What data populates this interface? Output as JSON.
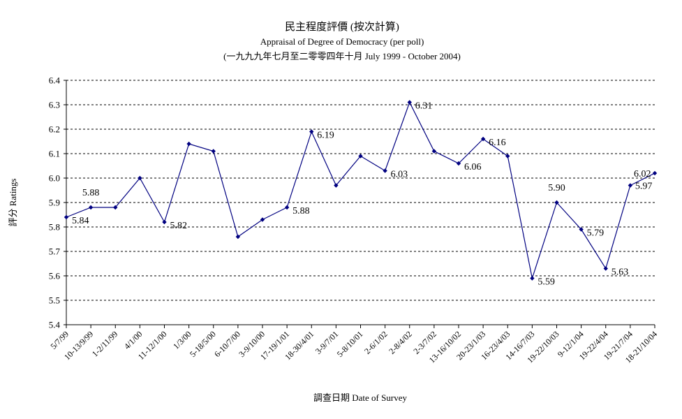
{
  "chart_data": {
    "type": "line",
    "title": "民主程度評價 (按次計算)",
    "subtitle_1": "Appraisal of Degree of Democracy (per poll)",
    "subtitle_2": "(一九九九年七月至二零零四年十月 July 1999 - October 2004)",
    "xlabel": "調查日期 Date of Survey",
    "ylabel": "評分 Ratings",
    "ylim": [
      5.4,
      6.4
    ],
    "yticks": [
      "5.4",
      "5.5",
      "5.6",
      "5.7",
      "5.8",
      "5.9",
      "6.0",
      "6.1",
      "6.2",
      "6.3",
      "6.4"
    ],
    "grid": true,
    "grid_style": "dashed",
    "line_color": "#000080",
    "categories": [
      "5/7/99",
      "10-13/9/99",
      "1-2/11/99",
      "4/1/00",
      "11-12/1/00",
      "1/3/00",
      "5-18/5/00",
      "6-10/7/00",
      "3-9/10/00",
      "17-19/1/01",
      "18-30/4/01",
      "3-9/7/01",
      "5-8/10/01",
      "2-6/1/02",
      "2-8/4/02",
      "2-3/7/02",
      "13-16/10/02",
      "20-23/1/03",
      "16-23/4/03",
      "14-16/7/03",
      "19-22/10/03",
      "9-12/1/04",
      "19-22/4/04",
      "19-21/7/04",
      "18-21/10/04"
    ],
    "values": [
      5.84,
      5.88,
      5.88,
      6.0,
      5.82,
      6.14,
      6.11,
      5.76,
      5.83,
      5.88,
      6.19,
      5.97,
      6.09,
      6.03,
      6.31,
      6.11,
      6.06,
      6.16,
      6.09,
      5.59,
      5.9,
      5.79,
      5.63,
      5.97,
      6.02
    ],
    "data_labels": [
      {
        "index": 0,
        "text": "5.84"
      },
      {
        "index": 1,
        "text": "5.88"
      },
      {
        "index": 4,
        "text": "5.82"
      },
      {
        "index": 9,
        "text": "5.88"
      },
      {
        "index": 10,
        "text": "6.19"
      },
      {
        "index": 13,
        "text": "6.03"
      },
      {
        "index": 14,
        "text": "6.31"
      },
      {
        "index": 16,
        "text": "6.06"
      },
      {
        "index": 17,
        "text": "6.16"
      },
      {
        "index": 19,
        "text": "5.59"
      },
      {
        "index": 20,
        "text": "5.90"
      },
      {
        "index": 21,
        "text": "5.79"
      },
      {
        "index": 22,
        "text": "5.63"
      },
      {
        "index": 23,
        "text": "5.97"
      },
      {
        "index": 24,
        "text": "6.02"
      }
    ]
  }
}
